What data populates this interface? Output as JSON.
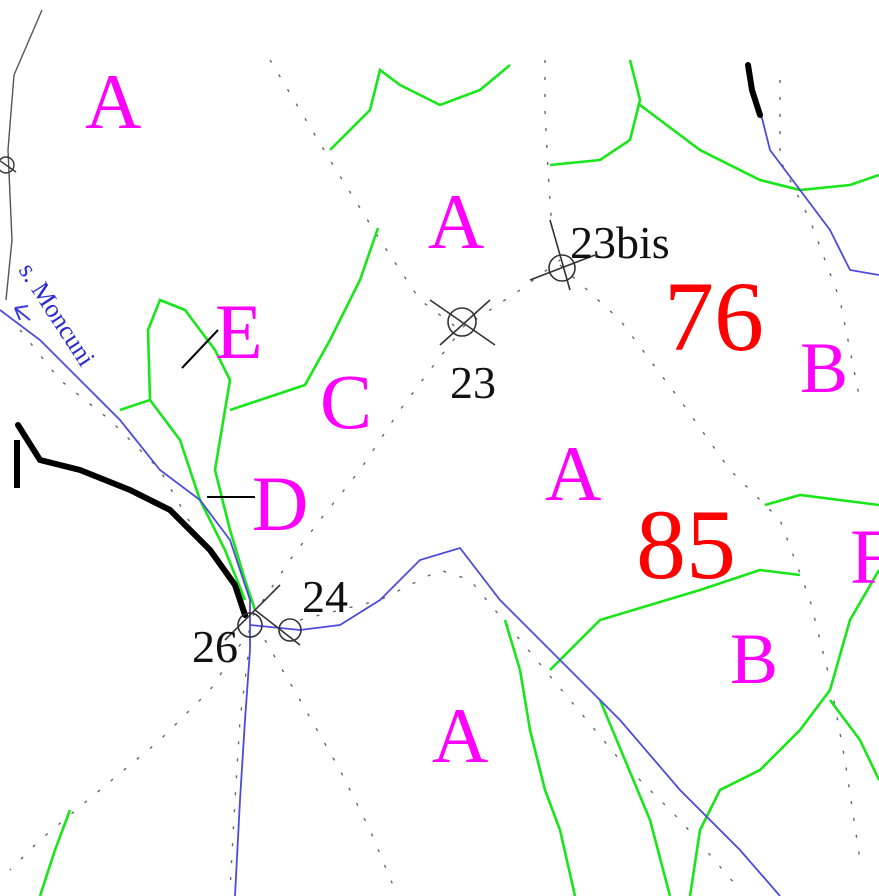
{
  "zones": [
    {
      "id": "zone-A-1",
      "text": "A"
    },
    {
      "id": "zone-A-2",
      "text": "A"
    },
    {
      "id": "zone-A-3",
      "text": "A"
    },
    {
      "id": "zone-A-4",
      "text": "A"
    },
    {
      "id": "zone-B-1",
      "text": "B"
    },
    {
      "id": "zone-B-2",
      "text": "B"
    },
    {
      "id": "zone-C",
      "text": "C"
    },
    {
      "id": "zone-D",
      "text": "D"
    },
    {
      "id": "zone-E",
      "text": "E"
    },
    {
      "id": "zone-F",
      "text": "F"
    }
  ],
  "parcels": {
    "p76": "76",
    "p85": "85"
  },
  "points": {
    "p23": "23",
    "p23bis": "23bis",
    "p24": "24",
    "p26": "26"
  },
  "river": {
    "label": "s. Moncuni"
  },
  "colors": {
    "zone_label": "#ff00ff",
    "parcel_number": "#ff0000",
    "boundary_green": "#19e619",
    "river_blue": "#4b4bdc",
    "road_black": "#000000"
  }
}
